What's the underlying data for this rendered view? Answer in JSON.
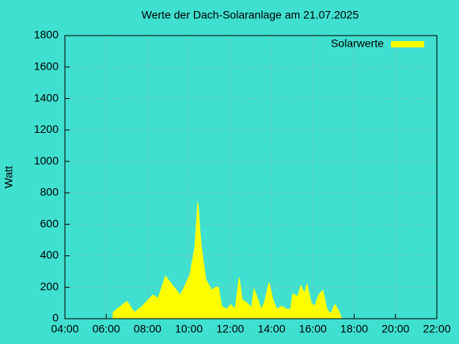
{
  "chart_data": {
    "type": "area",
    "title": "Werte der Dach-Solaranlage am 21.07.2025",
    "y_label": "Watt",
    "x": [
      "06:20",
      "07:00",
      "07:22",
      "07:45",
      "08:15",
      "08:31",
      "08:52",
      "09:17",
      "09:35",
      "09:44",
      "10:03",
      "10:17",
      "10:26",
      "10:35",
      "10:49",
      "11:07",
      "11:17",
      "11:26",
      "11:35",
      "11:49",
      "12:02",
      "12:14",
      "12:26",
      "12:35",
      "12:49",
      "13:02",
      "13:09",
      "13:19",
      "13:30",
      "13:39",
      "13:53",
      "14:04",
      "14:16",
      "14:29",
      "14:43",
      "14:55",
      "15:02",
      "15:16",
      "15:25",
      "15:36",
      "15:43",
      "15:55",
      "16:06",
      "16:17",
      "16:29",
      "16:41",
      "16:52",
      "17:04",
      "17:15",
      "17:24"
    ],
    "series": [
      {
        "name": "Solarwerte",
        "color": "#ffff00",
        "values": [
          40,
          110,
          40,
          80,
          150,
          130,
          270,
          200,
          150,
          190,
          280,
          450,
          740,
          480,
          250,
          180,
          200,
          200,
          80,
          60,
          90,
          60,
          260,
          120,
          100,
          70,
          190,
          130,
          60,
          100,
          230,
          120,
          60,
          80,
          60,
          60,
          160,
          140,
          210,
          160,
          220,
          100,
          80,
          150,
          180,
          60,
          30,
          90,
          50,
          0
        ]
      }
    ],
    "xlim": [
      "04:00",
      "22:00"
    ],
    "xticks": [
      "04:00",
      "06:00",
      "08:00",
      "10:00",
      "12:00",
      "14:00",
      "16:00",
      "18:00",
      "20:00",
      "22:00"
    ],
    "ylim": [
      0,
      1800
    ],
    "yticks": [
      0,
      200,
      400,
      600,
      800,
      1000,
      1200,
      1400,
      1600,
      1800
    ],
    "grid": true,
    "legend": "top-right"
  }
}
